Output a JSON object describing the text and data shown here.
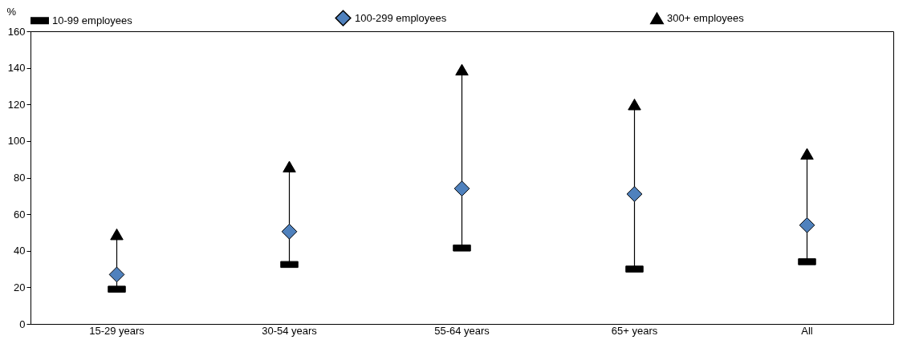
{
  "chart_data": {
    "type": "scatter",
    "ylabel": "%",
    "categories": [
      "15-29 years",
      "30-54 years",
      "55-64 years",
      "65+ years",
      "All"
    ],
    "series": [
      {
        "name": "10-99 employees",
        "color": "#000000",
        "values": [
          19,
          32.5,
          41.5,
          30,
          34
        ]
      },
      {
        "name": "100-299 employees",
        "color": "#4f81bd",
        "marker": "diamond",
        "values": [
          27,
          50.5,
          74,
          71,
          54
        ]
      },
      {
        "name": "300+ employees",
        "color": "#000000",
        "marker": "triangle",
        "values": [
          49,
          86,
          139,
          120,
          93
        ]
      }
    ],
    "ylim": [
      0,
      160
    ],
    "yticks": [
      0,
      20,
      40,
      60,
      80,
      100,
      120,
      140,
      160
    ],
    "grid": false,
    "legend": "top"
  }
}
